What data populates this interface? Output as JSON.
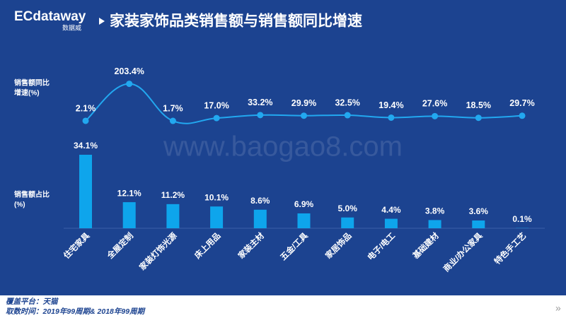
{
  "header": {
    "logo": "ECdataway",
    "logo_sub": "数据威"
  },
  "watermark": "www.baogao8.com",
  "chart_data": {
    "type": "combo",
    "title": "家装家饰品类销售额与销售额同比增速",
    "categories": [
      "住宅家具",
      "全屋定制",
      "家装灯饰光源",
      "床上用品",
      "家装主材",
      "五金/工具",
      "家居饰品",
      "电子/电工",
      "基础建材",
      "商业/办公家具",
      "特色手工艺"
    ],
    "series": [
      {
        "type": "line",
        "name": [
          "销售额同比",
          "增速(%)"
        ],
        "color": "#22a8f0",
        "values": [
          2.1,
          203.4,
          1.7,
          17.0,
          33.2,
          29.9,
          32.5,
          19.4,
          27.6,
          18.5,
          29.7
        ],
        "value_labels": [
          "2.1%",
          "203.4%",
          "1.7%",
          "17.0%",
          "33.2%",
          "29.9%",
          "32.5%",
          "19.4%",
          "27.6%",
          "18.5%",
          "29.7%"
        ]
      },
      {
        "type": "bar",
        "name": [
          "销售额占比",
          "(%)"
        ],
        "color": "#0ea5ec",
        "values": [
          34.1,
          12.1,
          11.2,
          10.1,
          8.6,
          6.9,
          5.0,
          4.4,
          3.8,
          3.6,
          0.1
        ],
        "value_labels": [
          "34.1%",
          "12.1%",
          "11.2%",
          "10.1%",
          "8.6%",
          "6.9%",
          "5.0%",
          "4.4%",
          "3.8%",
          "3.6%",
          "0.1%"
        ]
      }
    ]
  },
  "footer": {
    "platform": "覆盖平台：天猫",
    "period": "取数时间：2019年99周期& 2018年99周期",
    "next": "»"
  }
}
